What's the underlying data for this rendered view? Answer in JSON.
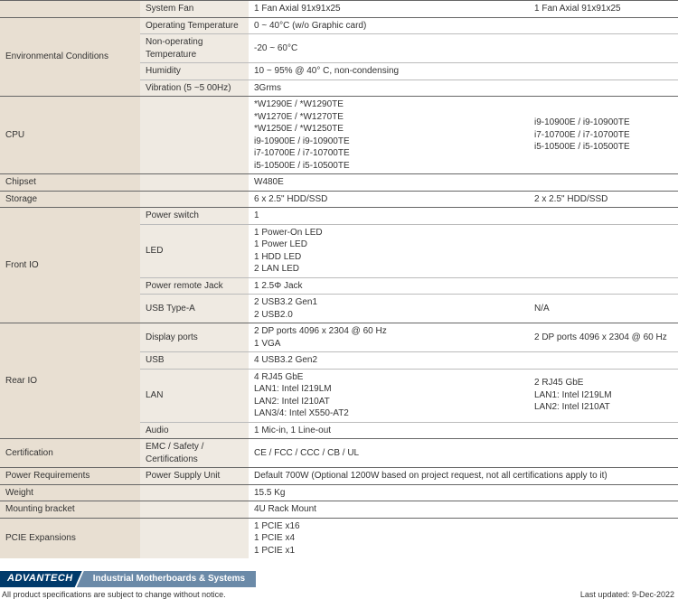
{
  "rows": [
    {
      "thick": true,
      "cat": "",
      "sub": "System Fan",
      "v1": "1 Fan Axial 91x91x25",
      "v2": "1 Fan Axial 91x91x25"
    },
    {
      "thick": true,
      "cat": "Environmental Conditions",
      "catRowspan": 4,
      "sub": "Operating Temperature",
      "v1": "0 ~ 40°C (w/o Graphic card)",
      "v2": ""
    },
    {
      "sub": "Non-operating Temperature",
      "v1": "-20 ~ 60°C",
      "v2": ""
    },
    {
      "sub": "Humidity",
      "v1": "10 ~ 95% @ 40° C, non-condensing",
      "v2": ""
    },
    {
      "sub": "Vibration (5 ~5 00Hz)",
      "v1": "3Grms",
      "v2": ""
    },
    {
      "thick": true,
      "cat": "CPU",
      "sub": "",
      "v1": "*W1290E / *W1290TE\n*W1270E / *W1270TE\n*W1250E / *W1250TE\ni9-10900E / i9-10900TE\ni7-10700E / i7-10700TE\ni5-10500E / i5-10500TE",
      "v2": "i9-10900E / i9-10900TE\ni7-10700E / i7-10700TE\ni5-10500E / i5-10500TE"
    },
    {
      "thick": true,
      "cat": "Chipset",
      "sub": "",
      "v1": "W480E",
      "v2": ""
    },
    {
      "thick": true,
      "cat": "Storage",
      "sub": "",
      "v1": "6 x 2.5\" HDD/SSD",
      "v2": "2 x 2.5\" HDD/SSD"
    },
    {
      "thick": true,
      "cat": "Front IO",
      "catRowspan": 4,
      "sub": "Power switch",
      "v1": "1",
      "v2": ""
    },
    {
      "sub": "LED",
      "v1": "1 Power-On LED\n1 Power LED\n1 HDD LED\n2 LAN LED",
      "v2": ""
    },
    {
      "sub": "Power remote Jack",
      "v1": "1 2.5Φ Jack",
      "v2": ""
    },
    {
      "sub": "USB Type-A",
      "v1": "2 USB3.2 Gen1\n2 USB2.0",
      "v2": "N/A"
    },
    {
      "thick": true,
      "cat": "Rear IO",
      "catRowspan": 4,
      "sub": "Display ports",
      "v1": "2 DP ports 4096 x 2304 @ 60 Hz\n1 VGA",
      "v2": "2 DP ports 4096 x 2304 @ 60 Hz"
    },
    {
      "sub": "USB",
      "v1": "4 USB3.2 Gen2",
      "v2": ""
    },
    {
      "sub": "LAN",
      "v1": "4 RJ45 GbE\nLAN1: Intel I219LM\nLAN2: Intel I210AT\nLAN3/4: Intel X550-AT2",
      "v2": "2 RJ45 GbE\nLAN1: Intel I219LM\nLAN2: Intel I210AT"
    },
    {
      "sub": "Audio",
      "v1": "1 Mic-in, 1 Line-out",
      "v2": ""
    },
    {
      "thick": true,
      "cat": "Certification",
      "sub": "EMC / Safety / Certifications",
      "v1": "CE / FCC / CCC / CB / UL",
      "v2": "",
      "v1Colspan": 2
    },
    {
      "thick": true,
      "cat": "Power Requirements",
      "sub": "Power Supply Unit",
      "v1": "Default 700W (Optional 1200W based on project request, not all certifications apply to it)",
      "v2": "",
      "v1Colspan": 2
    },
    {
      "thick": true,
      "cat": "Weight",
      "sub": "",
      "v1": "15.5 Kg",
      "v2": ""
    },
    {
      "thick": true,
      "cat": "Mounting bracket",
      "sub": "",
      "v1": "4U Rack Mount",
      "v2": ""
    },
    {
      "thick": true,
      "cat": "PCIE Expansions",
      "sub": "",
      "v1": "1 PCIE x16\n1 PCIE x4\n1 PCIE x1",
      "v2": ""
    }
  ],
  "footer": {
    "logo": "ADVANTECH",
    "title": "Industrial Motherboards & Systems",
    "disclaimer": "All product specifications are subject to change without notice.",
    "updated": "Last updated: 9-Dec-2022"
  },
  "colors": {
    "catBg": "#e8dfd2",
    "subBg": "#efeae2",
    "border": "#bbbbbb",
    "thickBorder": "#666666",
    "logoBg": "#003a6b",
    "titleBg": "#6b8aa8"
  }
}
